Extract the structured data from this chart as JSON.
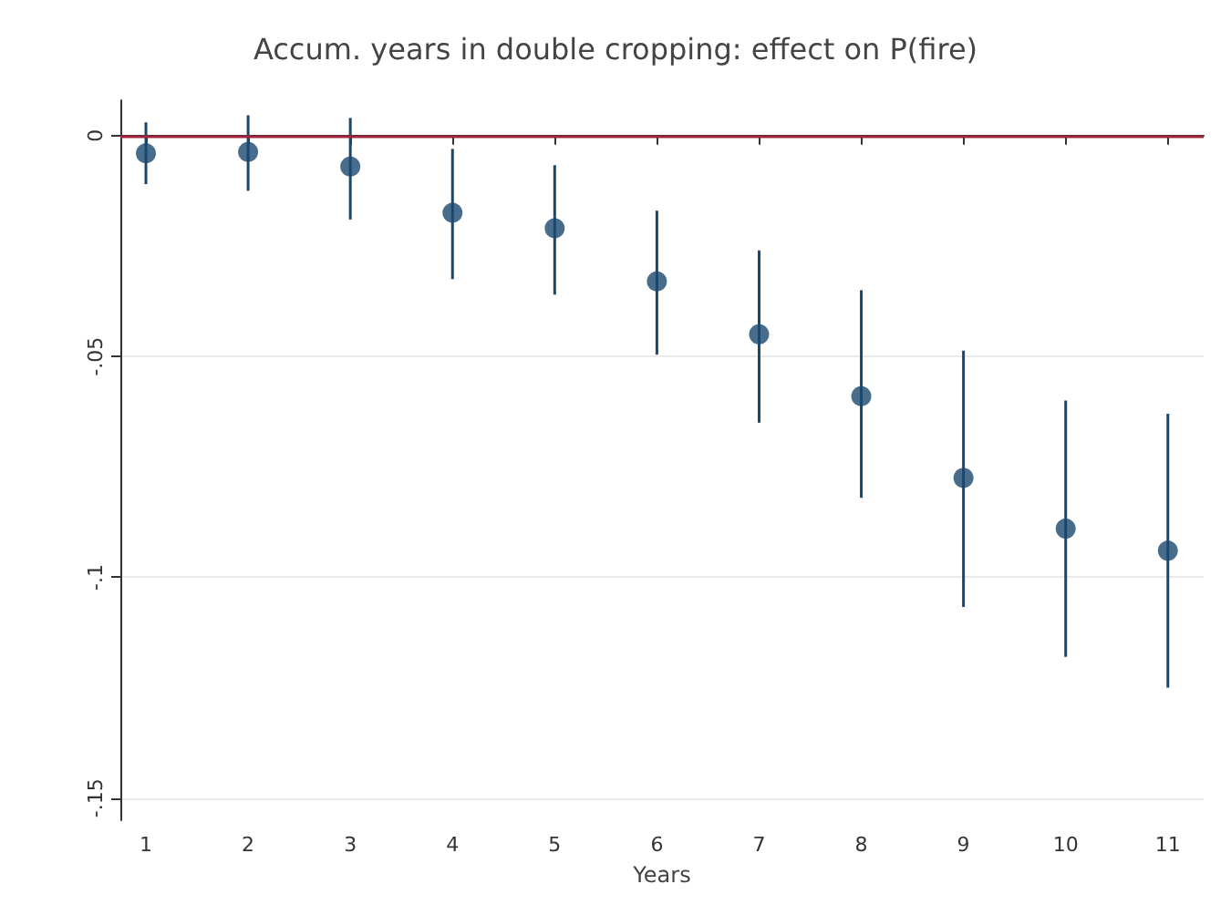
{
  "chart_data": {
    "type": "scatter",
    "title": "Accum. years in double cropping: effect on P(fire)",
    "xlabel": "Years",
    "x": [
      1,
      2,
      3,
      4,
      5,
      6,
      7,
      8,
      9,
      10,
      11
    ],
    "series": [
      {
        "color": "#1a476f",
        "values": [
          -0.004,
          -0.0037,
          -0.007,
          -0.0175,
          -0.021,
          -0.033,
          -0.045,
          -0.059,
          -0.0775,
          -0.089,
          -0.094
        ],
        "errors": [
          [
            -0.011,
            0.003
          ],
          [
            -0.0125,
            0.0046
          ],
          [
            -0.019,
            0.004
          ],
          [
            -0.0325,
            -0.003
          ],
          [
            -0.036,
            -0.0067
          ],
          [
            -0.0496,
            -0.017
          ],
          [
            -0.065,
            -0.026
          ],
          [
            -0.082,
            -0.035
          ],
          [
            -0.1067,
            -0.0487
          ],
          [
            -0.118,
            -0.06
          ],
          [
            -0.125,
            -0.063
          ]
        ]
      }
    ],
    "xlim": [
      0.75,
      11.35
    ],
    "xticks": [
      1,
      2,
      3,
      4,
      5,
      6,
      7,
      8,
      9,
      10,
      11
    ],
    "ylim": [
      -0.155,
      0.008
    ],
    "yticks": [
      {
        "value": 0,
        "label": "0"
      },
      {
        "value": -0.05,
        "label": "-.05"
      },
      {
        "value": -0.1,
        "label": "-.1"
      },
      {
        "value": -0.15,
        "label": "-.15"
      }
    ],
    "ref_lines": [
      {
        "axis": "y",
        "value": 0,
        "color": "#a0243c"
      }
    ],
    "grid": "y",
    "marker": "circle"
  }
}
